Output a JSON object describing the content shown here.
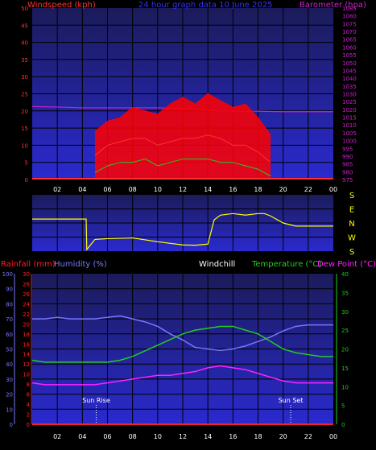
{
  "colors": {
    "background": "#000000",
    "plot_top": "#1b1b5a",
    "plot_bottom": "#2a2ad0",
    "grid": "#000000",
    "windspeed": "#ff3030",
    "barometer": "#cc22cc",
    "gust": "#ff0000",
    "avg_wind": "#22cc22",
    "direction": "#ffff00",
    "rainfall": "#ff2020",
    "humidity": "#7777ff",
    "windchill": "#ffffff",
    "temperature": "#22cc22",
    "dewpoint": "#ff22ff",
    "axis_left_bottom": "#7777ff",
    "axis_right_bottom": "#22cc22"
  },
  "chart_data": [
    {
      "type": "line",
      "title": "24 hour graph data  10 June 2025",
      "ylabel_left": "Windspeed (kph)",
      "ylabel_right": "Barometer (hpa)",
      "x_ticks": [
        "02",
        "04",
        "06",
        "08",
        "10",
        "12",
        "14",
        "16",
        "18",
        "20",
        "22",
        "00"
      ],
      "ylim_left": [
        0,
        50
      ],
      "yticks_left": [
        "0",
        "5",
        "10",
        "15",
        "20",
        "25",
        "30",
        "35",
        "40",
        "45",
        "50"
      ],
      "ylim_right": [
        975,
        1085
      ],
      "yticks_right": [
        "975",
        "980",
        "985",
        "990",
        "995",
        "1000",
        "1005",
        "1010",
        "1015",
        "1020",
        "1025",
        "1030",
        "1035",
        "1040",
        "1045",
        "1050",
        "1055",
        "1060",
        "1065",
        "1070",
        "1075",
        "1080",
        "1085"
      ],
      "series": [
        {
          "name": "Barometer (hpa)",
          "axis": "right",
          "x": [
            0,
            2,
            4,
            6,
            8,
            10,
            12,
            13,
            14,
            15,
            16,
            17,
            18,
            19,
            20,
            21,
            22,
            23,
            24
          ],
          "y": [
            1021.8,
            1021.5,
            1021,
            1021,
            1021,
            1021,
            1020.5,
            1020.2,
            1019.5,
            1019,
            1019,
            1018.8,
            1018.8,
            1018.6,
            1018.5,
            1018.5,
            1018.5,
            1018.5,
            1018.5
          ]
        },
        {
          "name": "Gust",
          "axis": "left",
          "x": [
            5,
            6,
            7,
            8,
            9,
            10,
            11,
            12,
            13,
            14,
            15,
            16,
            17,
            18,
            19
          ],
          "y": [
            14,
            17,
            18,
            21,
            20,
            19,
            22,
            24,
            22,
            25,
            23,
            21,
            22,
            18,
            13
          ]
        },
        {
          "name": "Windspeed",
          "axis": "left",
          "x": [
            5,
            6,
            7,
            8,
            9,
            10,
            11,
            12,
            13,
            14,
            15,
            16,
            17,
            18,
            19
          ],
          "y": [
            7,
            10,
            11,
            12,
            12,
            10,
            11,
            12,
            12,
            13,
            12,
            10,
            10,
            8,
            5
          ]
        },
        {
          "name": "Average",
          "axis": "left",
          "x": [
            5,
            6,
            7,
            8,
            9,
            10,
            11,
            12,
            13,
            14,
            15,
            16,
            17,
            18,
            19
          ],
          "y": [
            2,
            4,
            5,
            5,
            6,
            4,
            5,
            6,
            6,
            6,
            5,
            5,
            4,
            3,
            1
          ]
        }
      ]
    },
    {
      "type": "line",
      "ylabels_right": [
        "S",
        "E",
        "N",
        "W",
        "S"
      ],
      "x_ticks": [
        "02",
        "04",
        "06",
        "08",
        "10",
        "12",
        "14",
        "16",
        "18",
        "20",
        "22",
        "00"
      ],
      "series": [
        {
          "name": "Wind direction",
          "x": [
            0,
            4.3,
            4.35,
            5,
            6,
            8,
            10,
            12,
            13,
            14,
            14.5,
            15,
            16,
            17,
            18,
            18.5,
            19,
            20,
            21,
            22,
            23,
            24
          ],
          "y": [
            205,
            205,
            10,
            75,
            80,
            85,
            60,
            40,
            38,
            45,
            200,
            230,
            240,
            230,
            240,
            240,
            225,
            180,
            160,
            160,
            160,
            160
          ]
        }
      ]
    },
    {
      "type": "line",
      "ylabel_rainfall": "Rainfall (mm)",
      "ylabel_humidity": "Humidity (%)",
      "label_windchill": "Windchill",
      "ylabel_temperature": "Temperature (°C)",
      "ylabel_dewpoint": "Dew Point (°C)",
      "x_ticks": [
        "02",
        "04",
        "06",
        "08",
        "10",
        "12",
        "14",
        "16",
        "18",
        "20",
        "22",
        "00"
      ],
      "ylim_humidity": [
        0,
        100
      ],
      "yticks_humidity": [
        "0",
        "10",
        "20",
        "30",
        "40",
        "50",
        "60",
        "70",
        "80",
        "90",
        "100"
      ],
      "ylim_rainfall": [
        0,
        30
      ],
      "yticks_rainfall": [
        "0",
        "2",
        "4",
        "6",
        "8",
        "10",
        "12",
        "14",
        "16",
        "18",
        "20",
        "22",
        "24",
        "26",
        "28",
        "30"
      ],
      "ylim_temperature": [
        0,
        40
      ],
      "yticks_temperature": [
        "0",
        "5",
        "10",
        "15",
        "20",
        "25",
        "30",
        "35",
        "40"
      ],
      "annotations": [
        {
          "text": "Sun Rise",
          "x": 5.1
        },
        {
          "text": "Sun Set",
          "x": 20.6
        }
      ],
      "series": [
        {
          "name": "Rainfall (mm)",
          "axis": "rainfall",
          "x": [
            0,
            24
          ],
          "y": [
            0,
            0
          ]
        },
        {
          "name": "Humidity (%)",
          "axis": "humidity",
          "x": [
            0,
            1,
            2,
            3,
            4,
            5,
            6,
            7,
            8,
            9,
            10,
            11,
            12,
            13,
            14,
            15,
            16,
            17,
            18,
            19,
            20,
            21,
            22,
            23,
            24
          ],
          "y": [
            70,
            70,
            71,
            70,
            70,
            70,
            71,
            72,
            70,
            68,
            65,
            60,
            56,
            51,
            50,
            49,
            50,
            52,
            55,
            58,
            62,
            65,
            66,
            66,
            66
          ]
        },
        {
          "name": "Temperature (°C)",
          "axis": "temperature",
          "x": [
            0,
            1,
            2,
            3,
            4,
            5,
            6,
            7,
            8,
            9,
            10,
            11,
            12,
            13,
            14,
            15,
            16,
            17,
            18,
            19,
            20,
            21,
            22,
            23,
            24
          ],
          "y": [
            17,
            16.5,
            16.5,
            16.5,
            16.5,
            16.5,
            16.5,
            17,
            18,
            19.5,
            21,
            22.5,
            24,
            25,
            25.5,
            26,
            26,
            25,
            24,
            22,
            20,
            19,
            18.5,
            18,
            18
          ]
        },
        {
          "name": "Windchill",
          "axis": "temperature",
          "x": [
            0,
            24
          ],
          "y": [
            0,
            0
          ]
        },
        {
          "name": "Dew Point (°C)",
          "axis": "temperature",
          "x": [
            0,
            1,
            2,
            3,
            4,
            5,
            6,
            7,
            8,
            9,
            10,
            11,
            12,
            13,
            14,
            15,
            16,
            17,
            18,
            19,
            20,
            21,
            22,
            23,
            24
          ],
          "y": [
            11,
            10.5,
            10.5,
            10.5,
            10.5,
            10.5,
            11,
            11.5,
            12,
            12.5,
            13,
            13,
            13.5,
            14,
            15,
            15.5,
            15,
            14.5,
            13.5,
            12.5,
            11.5,
            11,
            11,
            11,
            11
          ]
        }
      ]
    }
  ]
}
